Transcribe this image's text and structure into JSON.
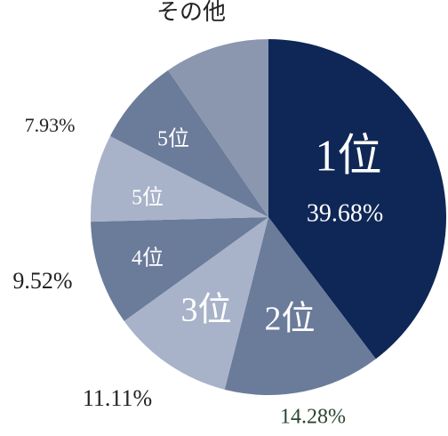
{
  "chart_data": {
    "type": "pie",
    "categories": [
      "1位",
      "2位",
      "3位",
      "4位",
      "5位",
      "5位",
      "その他"
    ],
    "values": [
      39.68,
      14.28,
      11.11,
      9.52,
      7.93,
      7.93,
      9.55
    ],
    "value_labels": [
      "39.68%",
      "14.28%",
      "11.11%",
      "9.52%",
      null,
      "7.93%",
      null
    ],
    "colors": [
      "#0e2756",
      "#6b7b9a",
      "#a8b3c9",
      "#6b7b9a",
      "#a8b3c9",
      "#6b7b9a",
      "#8a97af"
    ]
  }
}
